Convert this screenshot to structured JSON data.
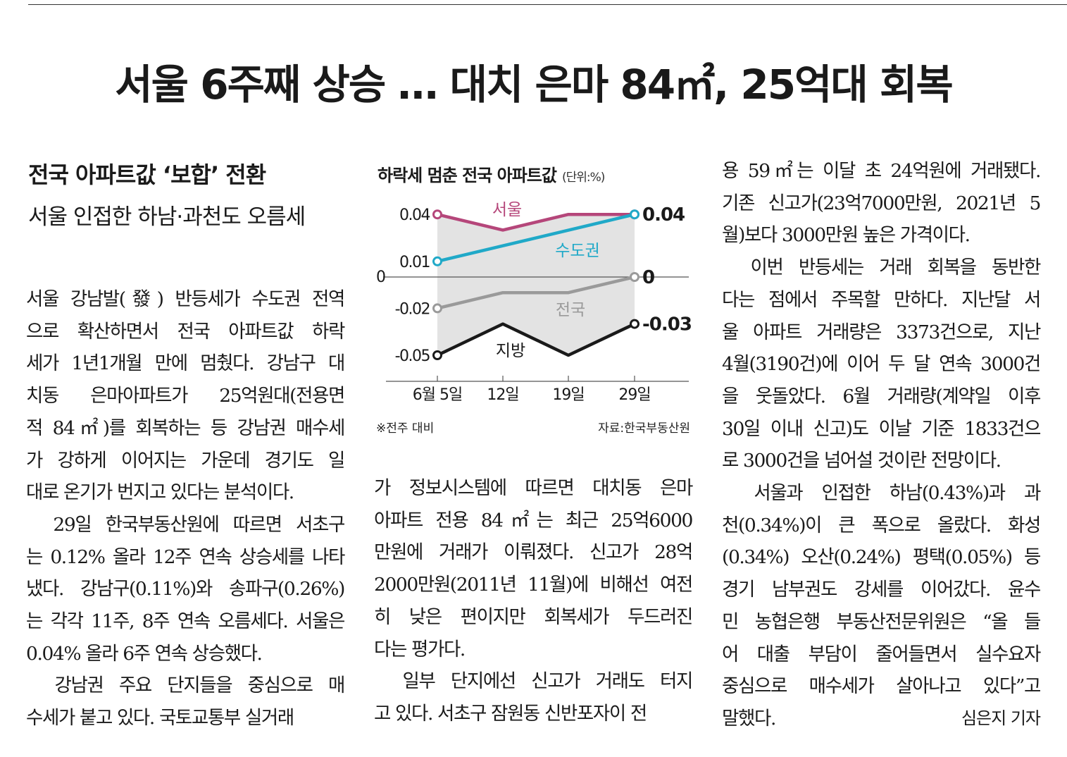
{
  "headline": "서울 6주째 상승 … 대치 은마 84㎡, 25억대 회복",
  "subheadline1": "전국 아파트값 ‘보합’ 전환",
  "subheadline2": "서울 인접한 하남·과천도 오름세",
  "column1": [
    "서울 강남발(發) 반등세가 수도권 전역",
    "으로 확산하면서 전국 아파트값 하락",
    "세가 1년1개월 만에 멈췄다. 강남구 대",
    "치동 은마아파트가 25억원대(전용면",
    "적 84㎡)를 회복하는 등 강남권 매수세",
    "가 강하게 이어지는 가운데 경기도 일",
    "대로 온기가 번지고 있다는 분석이다.",
    "　29일 한국부동산원에 따르면 서초구",
    "는 0.12% 올라 12주 연속 상승세를 나타",
    "냈다. 강남구(0.11%)와 송파구(0.26%)",
    "는 각각 11주, 8주 연속 오름세다. 서울은",
    "0.04% 올라 6주 연속 상승했다.",
    "　강남권 주요 단지들을 중심으로 매",
    "수세가 붙고 있다. 국토교통부 실거래"
  ],
  "column2": [
    "가 정보시스템에 따르면 대치동 은마",
    "아파트 전용 84㎡는 최근 25억6000",
    "만원에 거래가 이뤄졌다. 신고가 28억",
    "2000만원(2011년 11월)에 비해선 여전",
    "히 낮은 편이지만 회복세가 두드러진",
    "다는 평가다.",
    "　일부 단지에선 신고가 거래도 터지",
    "고 있다. 서초구 잠원동 신반포자이 전"
  ],
  "column3": [
    "용 59㎡는 이달 초 24억원에 거래됐다.",
    "기존 신고가(23억7000만원, 2021년 5",
    "월)보다 3000만원 높은 가격이다.",
    "　이번 반등세는 거래 회복을 동반한",
    "다는 점에서 주목할 만하다. 지난달 서",
    "울 아파트 거래량은 3373건으로, 지난",
    "4월(3190건)에 이어 두 달 연속 3000건",
    "을 웃돌았다. 6월 거래량(계약일 이후",
    "30일 이내 신고)도 이날 기준 1833건으",
    "로 3000건을 넘어설 것이란 전망이다.",
    "　서울과 인접한 하남(0.43%)과 과",
    "천(0.34%)이 큰 폭으로 올랐다. 화성",
    "(0.34%) 오산(0.24%) 평택(0.05%) 등",
    "경기 남부권도 강세를 이어갔다. 윤수",
    "민 농협은행 부동산전문위원은 “올 들",
    "어 대출 부담이 줄어들면서 실수요자",
    "중심으로 매수세가 살아나고 있다”고",
    "말했다."
  ],
  "byline": "심은지 기자",
  "chart_data": {
    "type": "line",
    "title": "하락세 멈춘 전국 아파트값",
    "unit": "(단위:%)",
    "categories": [
      "6월 5일",
      "12일",
      "19일",
      "29일"
    ],
    "ylim": [
      -0.06,
      0.05
    ],
    "series": [
      {
        "name": "서울",
        "values": [
          0.04,
          0.03,
          0.04,
          0.04
        ],
        "color": "#b5467a"
      },
      {
        "name": "수도권",
        "values": [
          0.01,
          null,
          null,
          0.04
        ],
        "color": "#20a9c8"
      },
      {
        "name": "전국",
        "values": [
          -0.02,
          -0.01,
          -0.01,
          0
        ],
        "color": "#9a9a9a"
      },
      {
        "name": "지방",
        "values": [
          -0.05,
          -0.03,
          -0.05,
          -0.03
        ],
        "color": "#1a1a1a"
      }
    ],
    "start_labels": [
      "0.04",
      "0.01",
      "-0.02",
      "-0.05"
    ],
    "end_labels": [
      "0.04",
      "0",
      "-0.03"
    ],
    "zero_label": "0",
    "note": "※전주 대비",
    "source": "자료:한국부동산원"
  }
}
